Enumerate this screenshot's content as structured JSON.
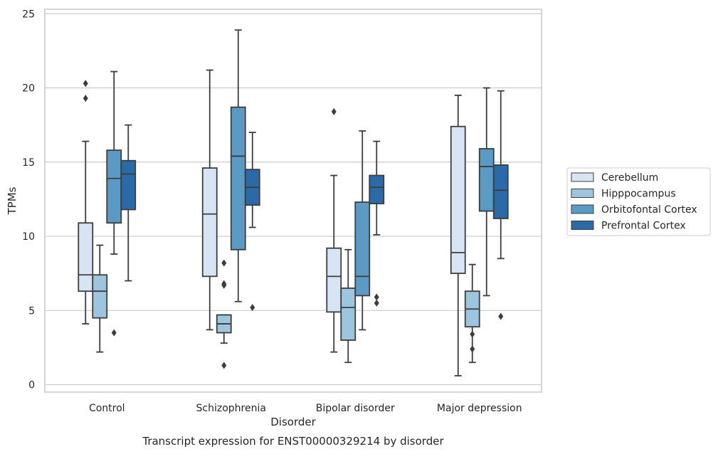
{
  "chart_data": {
    "type": "box",
    "title": "",
    "caption": "Transcript expression for ENST00000329214 by disorder",
    "xlabel": "Disorder",
    "ylabel": "TPMs",
    "ylim": [
      -0.5,
      25.3
    ],
    "yticks": [
      0,
      5,
      10,
      15,
      20,
      25
    ],
    "grid": "horizontal",
    "legend_position": "right",
    "categories": [
      "Control",
      "Schizophrenia",
      "Bipolar disorder",
      "Major depression"
    ],
    "series": [
      {
        "name": "Cerebellum",
        "color": "#d6e4f3",
        "boxes": [
          {
            "whislo": 4.1,
            "q1": 6.3,
            "med": 7.4,
            "q3": 10.9,
            "whishi": 16.4,
            "fliers": [
              19.3,
              20.3
            ]
          },
          {
            "whislo": 3.7,
            "q1": 7.3,
            "med": 11.5,
            "q3": 14.6,
            "whishi": 21.2,
            "fliers": []
          },
          {
            "whislo": 2.2,
            "q1": 4.9,
            "med": 7.3,
            "q3": 9.2,
            "whishi": 14.1,
            "fliers": [
              18.4
            ]
          },
          {
            "whislo": 0.6,
            "q1": 7.5,
            "med": 8.9,
            "q3": 17.4,
            "whishi": 19.5,
            "fliers": []
          }
        ]
      },
      {
        "name": "Hipppocampus",
        "color": "#9dc5dd",
        "boxes": [
          {
            "whislo": 2.2,
            "q1": 4.5,
            "med": 6.3,
            "q3": 7.4,
            "whishi": 9.4,
            "fliers": []
          },
          {
            "whislo": 2.8,
            "q1": 3.5,
            "med": 4.1,
            "q3": 4.7,
            "whishi": 4.7,
            "fliers": [
              1.3,
              6.7,
              6.8,
              8.2
            ]
          },
          {
            "whislo": 1.5,
            "q1": 3.0,
            "med": 5.2,
            "q3": 6.5,
            "whishi": 9.1,
            "fliers": []
          },
          {
            "whislo": 1.5,
            "q1": 3.9,
            "med": 5.1,
            "q3": 6.3,
            "whishi": 8.1,
            "fliers": [
              2.4,
              3.4
            ]
          }
        ]
      },
      {
        "name": "Orbitofontal Cortex",
        "color": "#5a9ac5",
        "boxes": [
          {
            "whislo": 8.8,
            "q1": 10.9,
            "med": 13.9,
            "q3": 15.8,
            "whishi": 21.1,
            "fliers": [
              3.5
            ]
          },
          {
            "whislo": 5.6,
            "q1": 9.1,
            "med": 15.4,
            "q3": 18.7,
            "whishi": 23.9,
            "fliers": []
          },
          {
            "whislo": 3.7,
            "q1": 6.0,
            "med": 7.3,
            "q3": 12.3,
            "whishi": 17.1,
            "fliers": []
          },
          {
            "whislo": 6.0,
            "q1": 11.7,
            "med": 14.7,
            "q3": 15.9,
            "whishi": 20.0,
            "fliers": []
          }
        ]
      },
      {
        "name": "Prefrontal Cortex",
        "color": "#2b6aa8",
        "boxes": [
          {
            "whislo": 7.0,
            "q1": 11.8,
            "med": 14.2,
            "q3": 15.1,
            "whishi": 17.5,
            "fliers": []
          },
          {
            "whislo": 10.6,
            "q1": 12.1,
            "med": 13.3,
            "q3": 14.5,
            "whishi": 17.0,
            "fliers": [
              5.2
            ]
          },
          {
            "whislo": 10.1,
            "q1": 12.2,
            "med": 13.3,
            "q3": 14.1,
            "whishi": 16.4,
            "fliers": [
              5.5,
              5.9
            ]
          },
          {
            "whislo": 8.5,
            "q1": 11.2,
            "med": 13.1,
            "q3": 14.8,
            "whishi": 19.8,
            "fliers": [
              4.6
            ]
          }
        ]
      }
    ]
  }
}
